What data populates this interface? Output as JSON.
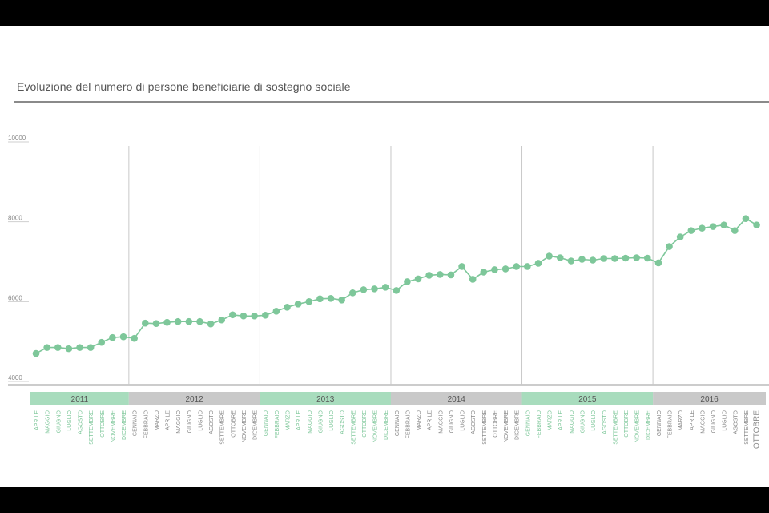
{
  "title": "Evoluzione del numero di persone beneficiarie di sostegno sociale",
  "colors": {
    "line": "#7ec79a",
    "year_band_green": "#a8dcbd",
    "year_band_grey": "#c9c9c9",
    "month_label_green": "#7ec79a",
    "month_label_grey": "#8a8a8a"
  },
  "chart_data": {
    "type": "line",
    "title": "Evoluzione del numero di persone beneficiarie di sostegno sociale",
    "xlabel": "",
    "ylabel": "",
    "ylim": [
      4000,
      10000
    ],
    "yticks": [
      "4000",
      "6000",
      "8000",
      "10000"
    ],
    "grid": false,
    "years": [
      {
        "label": "2011",
        "start": 0,
        "end": 8
      },
      {
        "label": "2012",
        "start": 9,
        "end": 20
      },
      {
        "label": "2013",
        "start": 21,
        "end": 32
      },
      {
        "label": "2014",
        "start": 33,
        "end": 44
      },
      {
        "label": "2015",
        "start": 45,
        "end": 56
      },
      {
        "label": "2016",
        "start": 57,
        "end": 66
      }
    ],
    "months": [
      "APRILE",
      "MAGGIO",
      "GIUGNO",
      "LUGLIO",
      "AGOSTO",
      "SETTEMBRE",
      "OTTOBRE",
      "NOVEMBRE",
      "DICEMBRE",
      "GENNAIO",
      "FEBBRAIO",
      "MARZO",
      "APRILE",
      "MAGGIO",
      "GIUGNO",
      "LUGLIO",
      "AGOSTO",
      "SETTEMBRE",
      "OTTOBRE",
      "NOVEMBRE",
      "DICEMBRE",
      "GENNAIO",
      "FEBBRAIO",
      "MARZO",
      "APRILE",
      "MAGGIO",
      "GIUGNO",
      "LUGLIO",
      "AGOSTO",
      "SETTEMBRE",
      "OTTOBRE",
      "NOVEMBRE",
      "DICEMBRE",
      "GENNAIO",
      "FEBBRAIO",
      "MARZO",
      "APRILE",
      "MAGGIO",
      "GIUGNO",
      "LUGLIO",
      "AGOSTO",
      "SETTEMBRE",
      "OTTOBRE",
      "NOVEMBRE",
      "DICEMBRE",
      "GENNAIO",
      "FEBBRAIO",
      "MARZO",
      "APRILE",
      "MAGGIO",
      "GIUGNO",
      "LUGLIO",
      "AGOSTO",
      "SETTEMBRE",
      "OTTOBRE",
      "NOVEMBRE",
      "DICEMBRE",
      "GENNAIO",
      "FEBBRAIO",
      "MARZO",
      "APRILE",
      "MAGGIO",
      "GIUGNO",
      "LUGLIO",
      "AGOSTO",
      "SETTEMBRE",
      "OTTOBRE"
    ],
    "values": [
      4620,
      4770,
      4770,
      4740,
      4770,
      4770,
      4900,
      5020,
      5040,
      5000,
      5380,
      5370,
      5400,
      5420,
      5420,
      5420,
      5360,
      5460,
      5590,
      5560,
      5560,
      5580,
      5680,
      5780,
      5860,
      5920,
      5990,
      6000,
      5960,
      6140,
      6220,
      6240,
      6280,
      6200,
      6420,
      6490,
      6580,
      6600,
      6590,
      6800,
      6480,
      6660,
      6720,
      6740,
      6800,
      6800,
      6880,
      7060,
      7020,
      6940,
      6980,
      6960,
      7000,
      7000,
      7010,
      7020,
      7010,
      6890,
      7300,
      7540,
      7700,
      7760,
      7800,
      7840,
      7700,
      8000,
      7840
    ]
  }
}
